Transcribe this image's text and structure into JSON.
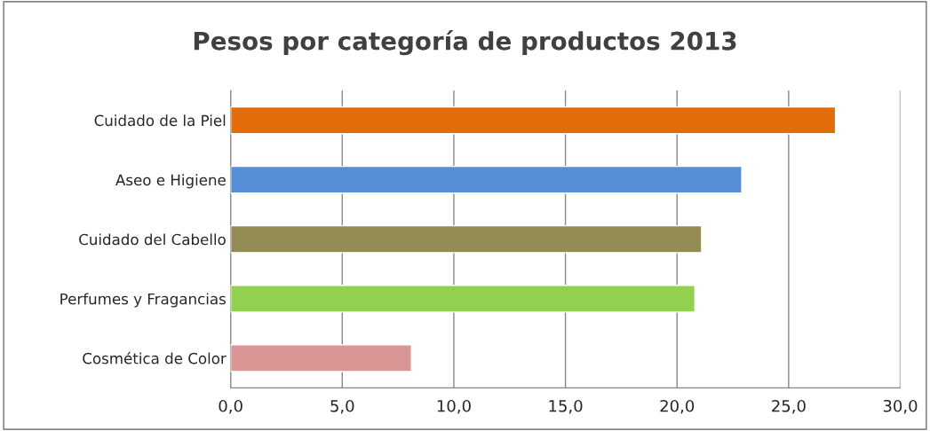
{
  "chart_data": {
    "type": "bar",
    "orientation": "horizontal",
    "title": "Pesos por categoría de productos 2013",
    "categories": [
      "Cuidado de la Piel",
      "Aseo e Higiene",
      "Cuidado del Cabello",
      "Perfumes y Fragancias",
      "Cosmética de Color"
    ],
    "values": [
      27.1,
      22.9,
      21.1,
      20.8,
      8.1
    ],
    "colors": [
      "#e36c09",
      "#558ed5",
      "#948a54",
      "#92d050",
      "#d99694"
    ],
    "xlim": [
      0,
      30
    ],
    "xticks": [
      {
        "value": 0,
        "label": "0,0"
      },
      {
        "value": 5,
        "label": "5,0"
      },
      {
        "value": 10,
        "label": "10,0"
      },
      {
        "value": 15,
        "label": "15,0"
      },
      {
        "value": 20,
        "label": "20,0"
      },
      {
        "value": 25,
        "label": "25,0"
      },
      {
        "value": 30,
        "label": "30,0"
      }
    ],
    "grid": "x",
    "legend": false
  }
}
